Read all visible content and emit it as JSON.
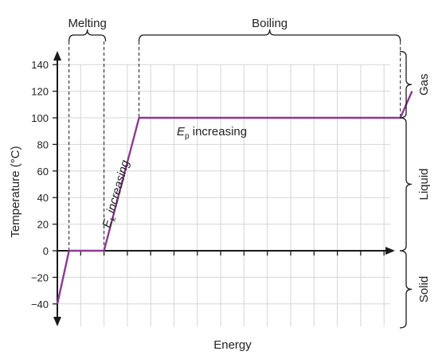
{
  "chart_data": {
    "type": "line",
    "xlabel": "Energy",
    "ylabel": "Temperature (°C)",
    "ylim": [
      -40,
      140
    ],
    "yticks": [
      140,
      120,
      100,
      80,
      60,
      40,
      20,
      0,
      -20,
      -40
    ],
    "grid": true,
    "x_ticks_unlabeled": 14,
    "series": [
      {
        "values_xy": [
          [
            0,
            -40
          ],
          [
            0.5,
            0
          ],
          [
            2.0,
            0
          ],
          [
            3.5,
            100
          ],
          [
            14.7,
            100
          ],
          [
            15.2,
            120
          ]
        ]
      }
    ],
    "brackets_top": [
      {
        "label": "Melting",
        "x_from": 0.5,
        "x_to": 2.0
      },
      {
        "label": "Boiling",
        "x_from": 3.5,
        "x_to": 14.7
      }
    ],
    "brackets_right": [
      {
        "label": "Gas",
        "y_from": 100,
        "y_to": 150
      },
      {
        "label": "Liquid",
        "y_from": 0,
        "y_to": 100
      },
      {
        "label": "Solid",
        "y_from": -58,
        "y_to": 0
      }
    ],
    "annotations": {
      "ek_symbol": "E",
      "ek_sub": "k",
      "ek_text": " increasing",
      "ep_symbol": "E",
      "ep_sub": "p",
      "ep_text": " increasing"
    },
    "colors": {
      "line": "#8b3a8f",
      "grid": "#d6d6d6",
      "axis": "#1a1a1a",
      "dashed": "#1a1a1a",
      "ref_dashed": "#999999"
    }
  }
}
